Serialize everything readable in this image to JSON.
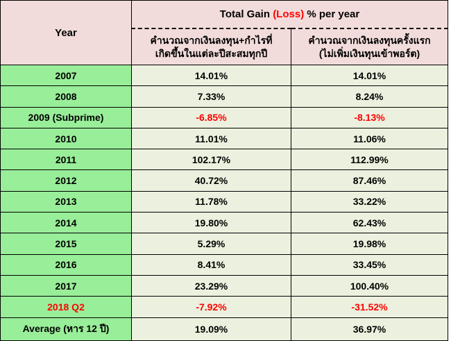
{
  "header": {
    "year_label": "Year",
    "title_prefix": "Total Gain ",
    "title_loss": "(Loss)",
    "title_suffix": " % per year",
    "col1_line1": "คำนวณจากเงินลงทุน+กำไรที่",
    "col1_line2": "เกิดขึ้นในแต่ละปีสะสมทุกปี",
    "col2_line1": "คำนวณจากเงินลงทุนครั้งแรก",
    "col2_line2": "(ไม่เพิ่มเงินทุนเข้าพอร์ต)"
  },
  "rows": [
    {
      "year": "2007",
      "compound": "14.01%",
      "initial": "14.01%"
    },
    {
      "year": "2008",
      "compound": "7.33%",
      "initial": "8.24%"
    },
    {
      "year": "2009 (Subprime)",
      "compound": "-6.85%",
      "initial": "-8.13%"
    },
    {
      "year": "2010",
      "compound": "11.01%",
      "initial": "11.06%"
    },
    {
      "year": "2011",
      "compound": "102.17%",
      "initial": "112.99%"
    },
    {
      "year": "2012",
      "compound": "40.72%",
      "initial": "87.46%"
    },
    {
      "year": "2013",
      "compound": "11.78%",
      "initial": "33.22%"
    },
    {
      "year": "2014",
      "compound": "19.80%",
      "initial": "62.43%"
    },
    {
      "year": "2015",
      "compound": "5.29%",
      "initial": "19.98%"
    },
    {
      "year": "2016",
      "compound": "8.41%",
      "initial": "33.45%"
    },
    {
      "year": "2017",
      "compound": "23.29%",
      "initial": "100.40%"
    },
    {
      "year": "2018 Q2",
      "compound": "-7.92%",
      "initial": "-31.52%"
    }
  ],
  "average": {
    "label": "Average (หาร 12 ปี)",
    "compound": "19.09%",
    "initial": "36.97%"
  },
  "colors": {
    "header_bg": "#f2dcdb",
    "year_bg": "#99ee99",
    "value_bg": "#ebf1de",
    "negative": "#ff0000"
  }
}
